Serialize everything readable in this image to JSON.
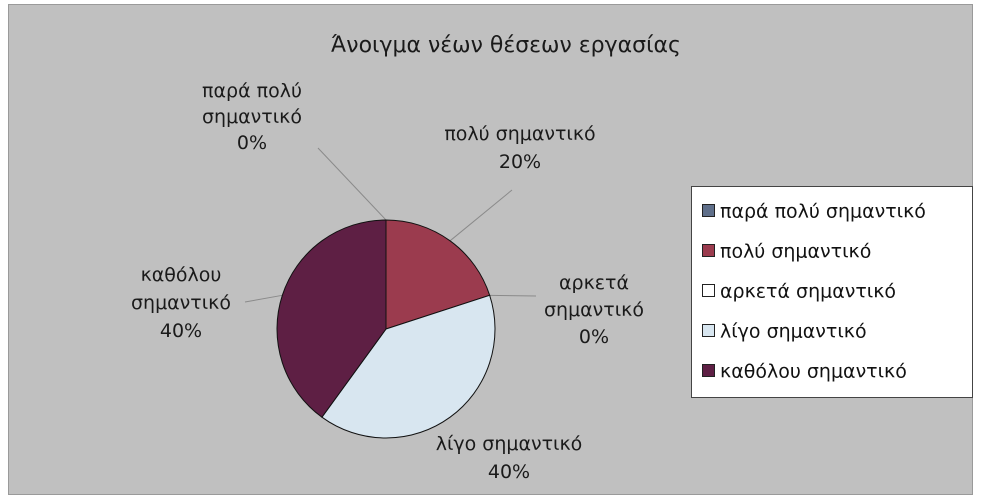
{
  "chart_data": {
    "type": "pie",
    "title": "Άνοιγμα νέων θέσεων εργασίας",
    "slices": [
      {
        "label": "παρά πολύ σημαντικό",
        "value": 0,
        "percent_label": "0%",
        "color": "#5f6f8a",
        "callout": [
          "παρά πολύ",
          "σημαντικό"
        ]
      },
      {
        "label": "πολύ σημαντικό",
        "value": 20,
        "percent_label": "20%",
        "color": "#9b3b4e",
        "callout": [
          "πολύ σημαντικό"
        ]
      },
      {
        "label": "αρκετά σημαντικό",
        "value": 0,
        "percent_label": "0%",
        "color": "#ffffff",
        "callout": [
          "αρκετά",
          "σημαντικό"
        ]
      },
      {
        "label": "λίγο σημαντικό",
        "value": 40,
        "percent_label": "40%",
        "color": "#d8e6f0",
        "callout": [
          "λίγο σημαντικό"
        ]
      },
      {
        "label": "καθόλου σημαντικό",
        "value": 40,
        "percent_label": "40%",
        "color": "#5e1f44",
        "callout": [
          "καθόλου",
          "σημαντικό"
        ]
      }
    ],
    "legend_position": "right"
  }
}
